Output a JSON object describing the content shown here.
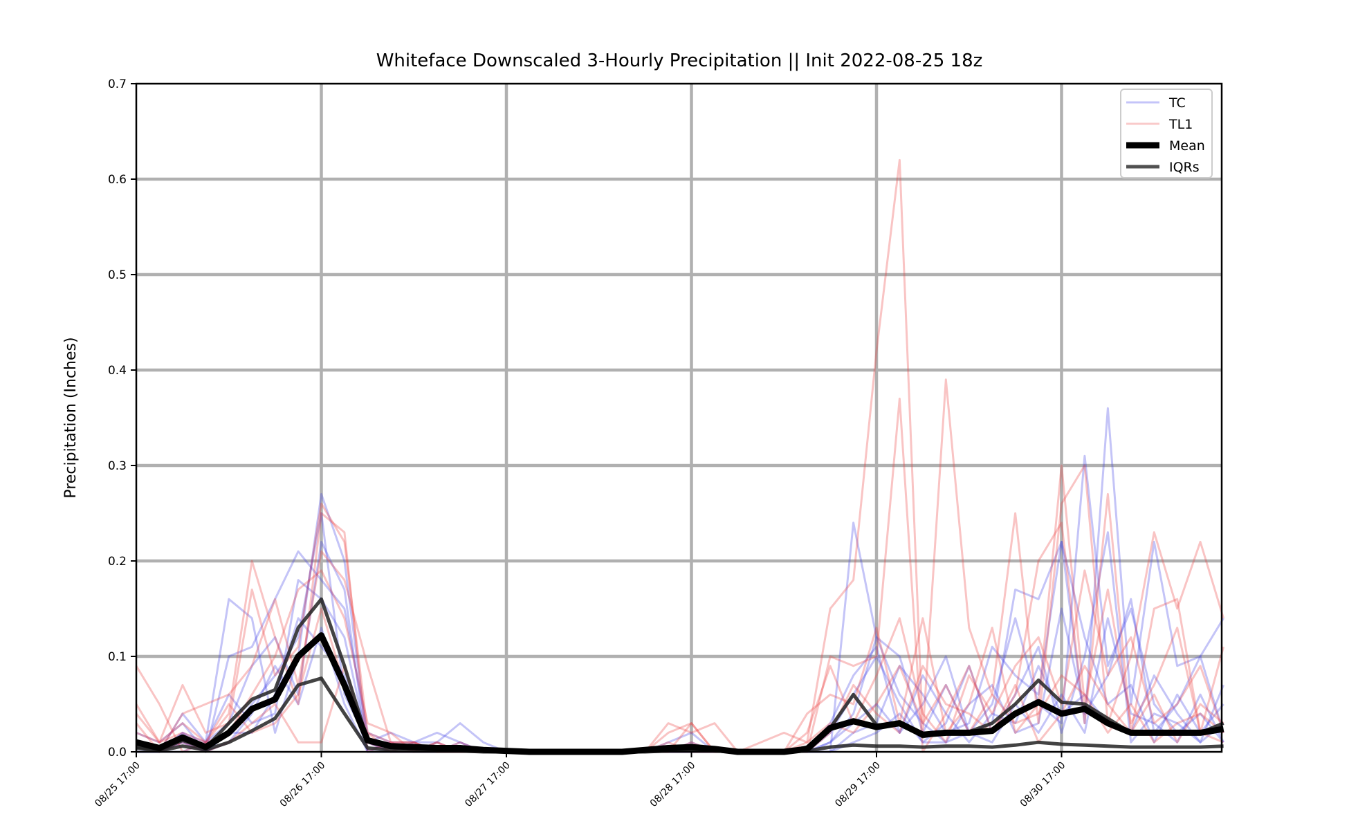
{
  "chart_data": {
    "type": "line",
    "title": "Whiteface Downscaled 3-Hourly Precipitation || Init 2022-08-25 18z",
    "xlabel": "",
    "ylabel": "Precipitation (Inches)",
    "ylim": [
      0,
      0.7
    ],
    "yticks": [
      "0.0",
      "0.1",
      "0.2",
      "0.3",
      "0.4",
      "0.5",
      "0.6",
      "0.7"
    ],
    "x_start": "2022-08-25 17:00",
    "x_step_hours": 3,
    "x_count": 48,
    "xticks": [
      {
        "index": 0,
        "label": "08/25 17:00"
      },
      {
        "index": 8,
        "label": "08/26 17:00"
      },
      {
        "index": 16,
        "label": "08/27 17:00"
      },
      {
        "index": 24,
        "label": "08/28 17:00"
      },
      {
        "index": 32,
        "label": "08/29 17:00"
      },
      {
        "index": 40,
        "label": "08/30 17:00"
      }
    ],
    "grid": true,
    "legend_position": "top-right",
    "legend": [
      {
        "label": "TC",
        "color": "#5555ee",
        "style": "thin"
      },
      {
        "label": "TL1",
        "color": "#ee6666",
        "style": "thin"
      },
      {
        "label": "Mean",
        "color": "#000000",
        "style": "thick"
      },
      {
        "label": "IQRs",
        "color": "#333333",
        "style": "medium"
      }
    ],
    "series": [
      {
        "group": "TC",
        "color": "#3a3ae6",
        "values": [
          0.01,
          0.0,
          0.04,
          0.01,
          0.16,
          0.14,
          0.02,
          0.1,
          0.27,
          0.2,
          0.01,
          0.02,
          0.01,
          0.01,
          0.03,
          0.01,
          0.0,
          0.0,
          0.0,
          0.0,
          0.0,
          0.0,
          0.0,
          0.0,
          0.0,
          0.0,
          0.0,
          0.0,
          0.0,
          0.0,
          0.0,
          0.24,
          0.12,
          0.1,
          0.02,
          0.07,
          0.02,
          0.03,
          0.17,
          0.16,
          0.22,
          0.03,
          0.36,
          0.05,
          0.22,
          0.09,
          0.1,
          0.14
        ]
      },
      {
        "group": "TC",
        "color": "#3a3ae6",
        "values": [
          0.02,
          0.01,
          0.03,
          0.0,
          0.1,
          0.11,
          0.16,
          0.21,
          0.18,
          0.15,
          0.02,
          0.01,
          0.01,
          0.02,
          0.01,
          0.0,
          0.0,
          0.0,
          0.0,
          0.0,
          0.0,
          0.0,
          0.0,
          0.0,
          0.01,
          0.0,
          0.0,
          0.0,
          0.0,
          0.0,
          0.03,
          0.08,
          0.11,
          0.02,
          0.05,
          0.1,
          0.02,
          0.05,
          0.14,
          0.05,
          0.03,
          0.31,
          0.09,
          0.15,
          0.05,
          0.02,
          0.04,
          0.01
        ]
      },
      {
        "group": "TC",
        "color": "#3a3ae6",
        "values": [
          0.0,
          0.0,
          0.01,
          0.0,
          0.02,
          0.05,
          0.08,
          0.12,
          0.25,
          0.06,
          0.01,
          0.0,
          0.01,
          0.0,
          0.0,
          0.0,
          0.0,
          0.0,
          0.0,
          0.0,
          0.0,
          0.0,
          0.0,
          0.01,
          0.02,
          0.0,
          0.0,
          0.0,
          0.0,
          0.0,
          0.02,
          0.06,
          0.1,
          0.05,
          0.01,
          0.03,
          0.09,
          0.02,
          0.06,
          0.11,
          0.02,
          0.1,
          0.23,
          0.01,
          0.04,
          0.03,
          0.01,
          0.07
        ]
      },
      {
        "group": "TC",
        "color": "#3a3ae6",
        "values": [
          0.01,
          0.0,
          0.02,
          0.01,
          0.03,
          0.09,
          0.12,
          0.06,
          0.22,
          0.17,
          0.0,
          0.01,
          0.0,
          0.01,
          0.0,
          0.0,
          0.0,
          0.0,
          0.0,
          0.0,
          0.0,
          0.0,
          0.0,
          0.0,
          0.0,
          0.0,
          0.0,
          0.0,
          0.0,
          0.0,
          0.01,
          0.04,
          0.12,
          0.06,
          0.03,
          0.01,
          0.05,
          0.07,
          0.02,
          0.03,
          0.15,
          0.04,
          0.08,
          0.16,
          0.02,
          0.05,
          0.1,
          0.02
        ]
      },
      {
        "group": "TC",
        "color": "#3a3ae6",
        "values": [
          0.0,
          0.0,
          0.0,
          0.01,
          0.06,
          0.03,
          0.04,
          0.18,
          0.16,
          0.12,
          0.01,
          0.0,
          0.0,
          0.0,
          0.01,
          0.0,
          0.0,
          0.0,
          0.0,
          0.0,
          0.0,
          0.0,
          0.0,
          0.0,
          0.0,
          0.0,
          0.0,
          0.0,
          0.0,
          0.0,
          0.0,
          0.02,
          0.03,
          0.09,
          0.06,
          0.02,
          0.03,
          0.11,
          0.08,
          0.06,
          0.22,
          0.12,
          0.05,
          0.07,
          0.01,
          0.06,
          0.02,
          0.05
        ]
      },
      {
        "group": "TC",
        "color": "#3a3ae6",
        "values": [
          0.01,
          0.0,
          0.01,
          0.0,
          0.02,
          0.02,
          0.06,
          0.14,
          0.11,
          0.08,
          0.0,
          0.0,
          0.0,
          0.0,
          0.0,
          0.0,
          0.0,
          0.0,
          0.0,
          0.0,
          0.0,
          0.0,
          0.0,
          0.0,
          0.0,
          0.0,
          0.0,
          0.0,
          0.0,
          0.0,
          0.01,
          0.03,
          0.05,
          0.02,
          0.08,
          0.04,
          0.01,
          0.04,
          0.03,
          0.09,
          0.04,
          0.06,
          0.03,
          0.02,
          0.08,
          0.04,
          0.01,
          0.03
        ]
      },
      {
        "group": "TC",
        "color": "#3a3ae6",
        "values": [
          0.0,
          0.0,
          0.02,
          0.0,
          0.01,
          0.04,
          0.09,
          0.05,
          0.13,
          0.05,
          0.0,
          0.0,
          0.0,
          0.0,
          0.0,
          0.0,
          0.0,
          0.0,
          0.0,
          0.0,
          0.0,
          0.0,
          0.0,
          0.0,
          0.0,
          0.0,
          0.0,
          0.0,
          0.0,
          0.0,
          0.0,
          0.01,
          0.02,
          0.04,
          0.01,
          0.01,
          0.02,
          0.01,
          0.05,
          0.02,
          0.06,
          0.02,
          0.14,
          0.04,
          0.03,
          0.01,
          0.06,
          0.01
        ]
      },
      {
        "group": "TL1",
        "color": "#ec3b3b",
        "values": [
          0.09,
          0.05,
          0.0,
          0.01,
          0.04,
          0.2,
          0.12,
          0.05,
          0.25,
          0.23,
          0.0,
          0.01,
          0.0,
          0.01,
          0.0,
          0.0,
          0.0,
          0.0,
          0.0,
          0.0,
          0.0,
          0.0,
          0.0,
          0.03,
          0.02,
          0.03,
          0.0,
          0.01,
          0.02,
          0.01,
          0.15,
          0.18,
          0.42,
          0.62,
          0.02,
          0.39,
          0.13,
          0.06,
          0.25,
          0.03,
          0.26,
          0.3,
          0.03,
          0.1,
          0.23,
          0.15,
          0.22,
          0.14
        ]
      },
      {
        "group": "TL1",
        "color": "#ec3b3b",
        "values": [
          0.05,
          0.01,
          0.07,
          0.02,
          0.03,
          0.17,
          0.08,
          0.11,
          0.26,
          0.22,
          0.02,
          0.0,
          0.01,
          0.0,
          0.0,
          0.0,
          0.0,
          0.0,
          0.0,
          0.0,
          0.0,
          0.0,
          0.0,
          0.0,
          0.03,
          0.0,
          0.0,
          0.0,
          0.0,
          0.0,
          0.1,
          0.09,
          0.1,
          0.37,
          0.0,
          0.04,
          0.09,
          0.02,
          0.06,
          0.2,
          0.24,
          0.03,
          0.27,
          0.02,
          0.15,
          0.16,
          0.02,
          0.01
        ]
      },
      {
        "group": "TL1",
        "color": "#ec3b3b",
        "values": [
          0.03,
          0.0,
          0.04,
          0.05,
          0.06,
          0.09,
          0.16,
          0.07,
          0.21,
          0.18,
          0.09,
          0.01,
          0.01,
          0.0,
          0.0,
          0.0,
          0.0,
          0.0,
          0.0,
          0.0,
          0.0,
          0.0,
          0.0,
          0.02,
          0.03,
          0.0,
          0.0,
          0.0,
          0.0,
          0.04,
          0.06,
          0.05,
          0.13,
          0.03,
          0.14,
          0.02,
          0.05,
          0.13,
          0.02,
          0.05,
          0.3,
          0.05,
          0.17,
          0.03,
          0.07,
          0.13,
          0.02,
          0.11
        ]
      },
      {
        "group": "TL1",
        "color": "#ec3b3b",
        "values": [
          0.02,
          0.01,
          0.02,
          0.01,
          0.02,
          0.06,
          0.1,
          0.17,
          0.19,
          0.14,
          0.03,
          0.02,
          0.0,
          0.01,
          0.0,
          0.0,
          0.0,
          0.0,
          0.0,
          0.0,
          0.0,
          0.0,
          0.0,
          0.01,
          0.0,
          0.0,
          0.0,
          0.0,
          0.0,
          0.02,
          0.09,
          0.03,
          0.08,
          0.14,
          0.04,
          0.01,
          0.08,
          0.04,
          0.09,
          0.12,
          0.05,
          0.19,
          0.08,
          0.12,
          0.03,
          0.05,
          0.09,
          0.02
        ]
      },
      {
        "group": "TL1",
        "color": "#ec3b3b",
        "values": [
          0.01,
          0.0,
          0.01,
          0.0,
          0.01,
          0.03,
          0.05,
          0.01,
          0.01,
          0.09,
          0.01,
          0.0,
          0.0,
          0.0,
          0.0,
          0.0,
          0.0,
          0.0,
          0.0,
          0.0,
          0.0,
          0.0,
          0.0,
          0.0,
          0.0,
          0.0,
          0.0,
          0.0,
          0.0,
          0.01,
          0.03,
          0.02,
          0.05,
          0.09,
          0.03,
          0.07,
          0.02,
          0.06,
          0.03,
          0.04,
          0.08,
          0.06,
          0.02,
          0.05,
          0.01,
          0.03,
          0.04,
          0.02
        ]
      },
      {
        "group": "TL1",
        "color": "#ec3b3b",
        "values": [
          0.04,
          0.01,
          0.03,
          0.01,
          0.05,
          0.02,
          0.03,
          0.06,
          0.15,
          0.07,
          0.02,
          0.01,
          0.01,
          0.0,
          0.01,
          0.0,
          0.0,
          0.0,
          0.0,
          0.0,
          0.0,
          0.0,
          0.0,
          0.0,
          0.01,
          0.0,
          0.0,
          0.0,
          0.0,
          0.0,
          0.02,
          0.07,
          0.04,
          0.02,
          0.09,
          0.05,
          0.04,
          0.02,
          0.07,
          0.01,
          0.04,
          0.09,
          0.05,
          0.02,
          0.06,
          0.01,
          0.05,
          0.03
        ]
      },
      {
        "group": "IQR",
        "color": "#222222",
        "values": [
          0.005,
          0.002,
          0.012,
          0.004,
          0.03,
          0.055,
          0.065,
          0.13,
          0.16,
          0.09,
          0.012,
          0.006,
          0.004,
          0.003,
          0.002,
          0.001,
          0.0,
          0.0,
          0.0,
          0.0,
          0.0,
          0.0,
          0.001,
          0.002,
          0.003,
          0.001,
          0.0,
          0.0,
          0.0,
          0.005,
          0.025,
          0.06,
          0.028,
          0.03,
          0.016,
          0.02,
          0.021,
          0.03,
          0.05,
          0.075,
          0.052,
          0.05,
          0.035,
          0.02,
          0.02,
          0.02,
          0.02,
          0.03
        ]
      },
      {
        "group": "IQR",
        "color": "#222222",
        "values": [
          0.004,
          0.001,
          0.006,
          0.002,
          0.01,
          0.022,
          0.035,
          0.07,
          0.077,
          0.04,
          0.004,
          0.002,
          0.001,
          0.001,
          0.001,
          0.0,
          0.0,
          0.0,
          0.0,
          0.0,
          0.0,
          0.0,
          0.0,
          0.001,
          0.002,
          0.001,
          0.0,
          0.0,
          0.0,
          0.001,
          0.005,
          0.007,
          0.006,
          0.006,
          0.005,
          0.006,
          0.006,
          0.005,
          0.007,
          0.01,
          0.008,
          0.007,
          0.006,
          0.005,
          0.005,
          0.005,
          0.005,
          0.006
        ]
      },
      {
        "group": "Mean",
        "color": "#000000",
        "values": [
          0.01,
          0.004,
          0.015,
          0.005,
          0.02,
          0.045,
          0.055,
          0.1,
          0.122,
          0.07,
          0.012,
          0.006,
          0.005,
          0.004,
          0.004,
          0.002,
          0.001,
          0.0,
          0.0,
          0.0,
          0.0,
          0.0,
          0.002,
          0.004,
          0.005,
          0.003,
          0.0,
          0.0,
          0.0,
          0.003,
          0.025,
          0.032,
          0.026,
          0.03,
          0.018,
          0.02,
          0.02,
          0.022,
          0.04,
          0.052,
          0.04,
          0.045,
          0.03,
          0.02,
          0.02,
          0.02,
          0.02,
          0.024
        ]
      }
    ]
  }
}
